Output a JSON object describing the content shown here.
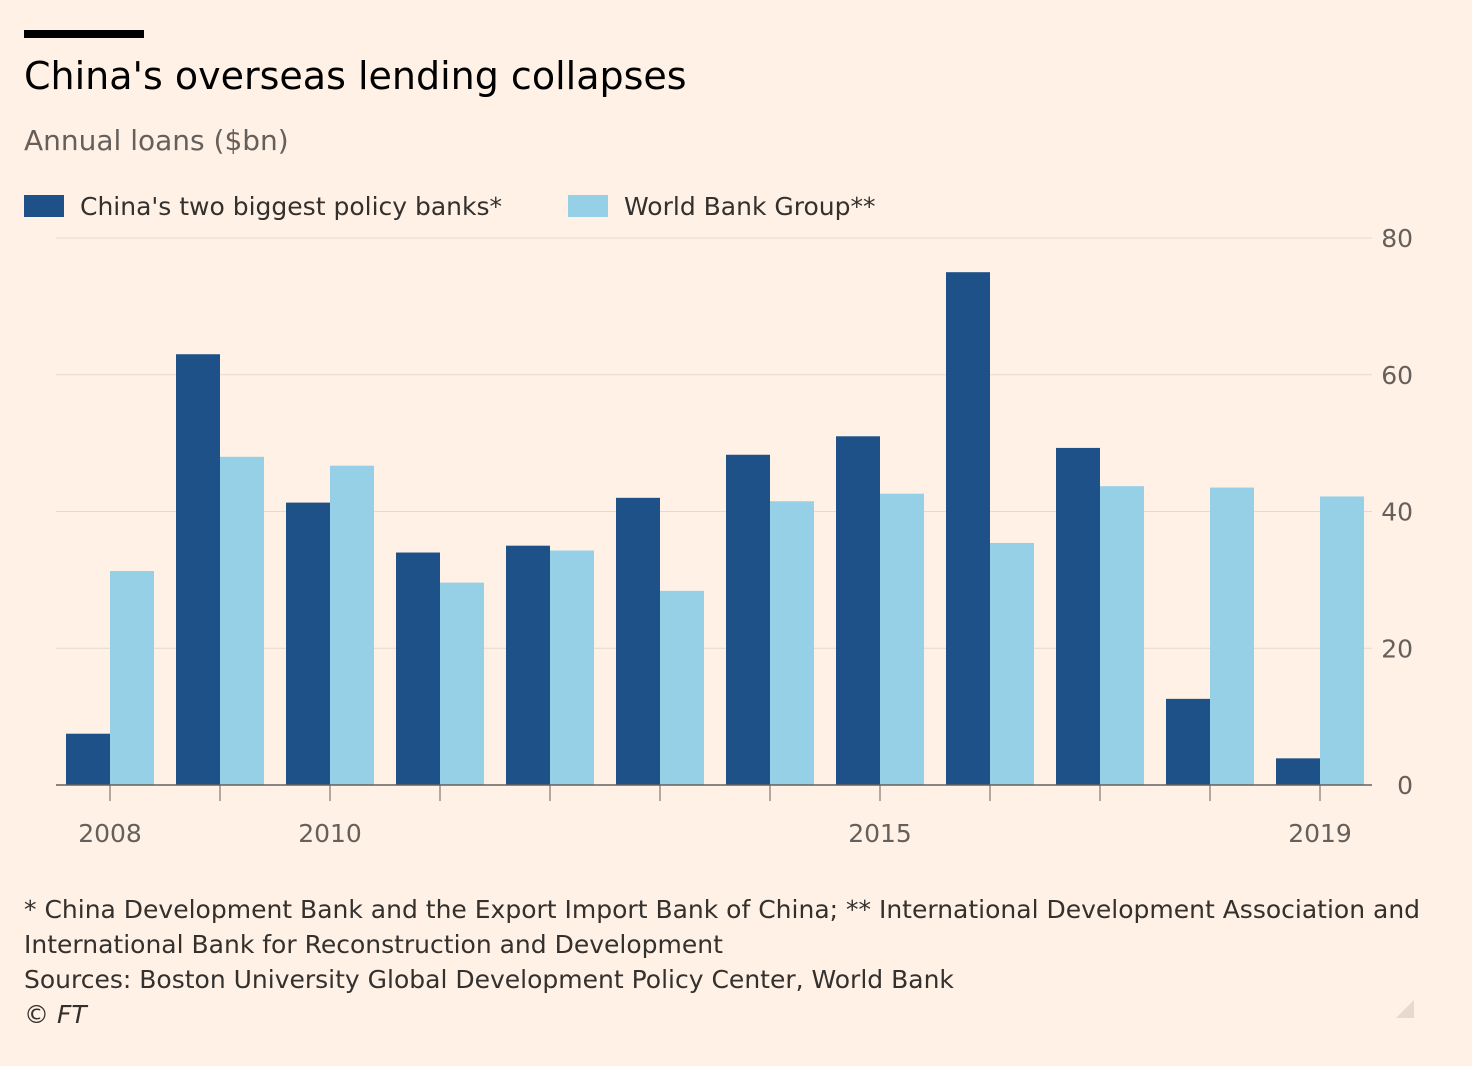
{
  "header": {
    "title": "China's overseas lending collapses",
    "subtitle": "Annual loans ($bn)"
  },
  "legend": [
    {
      "label": "China's two biggest policy banks*",
      "color": "#1e5187"
    },
    {
      "label": "World Bank Group**",
      "color": "#96d0e6"
    }
  ],
  "footer": {
    "note_line1": "* China Development Bank and the Export Import Bank of China; ** International Development Association and",
    "note_line2": "International Bank for Reconstruction and Development",
    "sources": "Sources: Boston University Global Development Policy Center, World Bank",
    "credit": "© FT"
  },
  "chart_data": {
    "type": "bar",
    "title": "China's overseas lending collapses",
    "subtitle": "Annual loans ($bn)",
    "categories": [
      "2008",
      "2009",
      "2010",
      "2011",
      "2012",
      "2013",
      "2014",
      "2015",
      "2016",
      "2017",
      "2018",
      "2019"
    ],
    "x_tick_labels": [
      "2008",
      "2010",
      "2015",
      "2019"
    ],
    "series": [
      {
        "name": "China's two biggest policy banks*",
        "color": "#1e5187",
        "values": [
          7.5,
          63,
          41.3,
          34,
          35,
          42,
          48.3,
          51,
          75,
          49.3,
          12.6,
          3.9
        ]
      },
      {
        "name": "World Bank Group**",
        "color": "#96d0e6",
        "values": [
          31.3,
          48,
          46.7,
          29.6,
          34.3,
          28.4,
          41.5,
          42.6,
          35.4,
          43.7,
          43.5,
          42.2
        ]
      }
    ],
    "ylim": [
      0,
      80
    ],
    "yticks": [
      0,
      20,
      40,
      60,
      80
    ],
    "y_axis_position": "right",
    "grid": true,
    "legend_position": "top-left"
  }
}
